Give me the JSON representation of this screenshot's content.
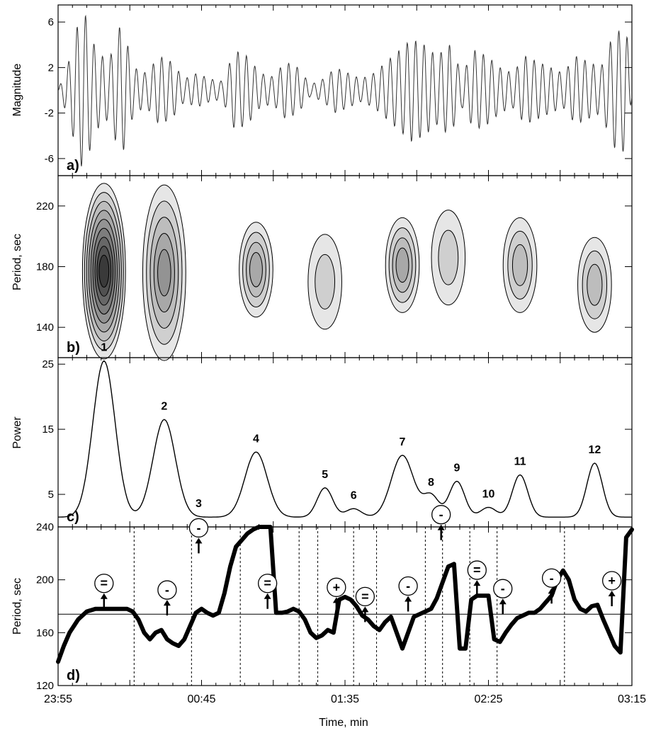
{
  "chart_data": [
    {
      "panel": "a",
      "panel_label": "a)",
      "type": "line",
      "ylabel": "Magnitude",
      "yticks": [
        "6",
        "2",
        "-2",
        "-6"
      ],
      "ylim": [
        -7.5,
        7.5
      ],
      "description_series": "oscillating signal with amplitude bursts",
      "series": [
        {
          "x": [
            0.0,
            4.4,
            5.9,
            8.8,
            13.2,
            17.6,
            22.0,
            26.4,
            30.8,
            35.2,
            39.6,
            44.0,
            48.4,
            52.8,
            57.2,
            61.6,
            66.0,
            70.4,
            74.8,
            79.2,
            83.6,
            88.0,
            92.4,
            96.8,
            101.2,
            105.6,
            110.0,
            114.4,
            118.8,
            123.2,
            127.6,
            132.0,
            136.4,
            140.8,
            145.2,
            149.6,
            154.0,
            158.4,
            162.8,
            167.2,
            171.6,
            176.0,
            180.4,
            184.8,
            189.2,
            193.6,
            198.0,
            200.0
          ],
          "y": [
            0.0,
            3.0,
            5.0,
            7.2,
            3.5,
            2.5,
            6.0,
            2.0,
            1.5,
            3.0,
            2.5,
            1.0,
            1.5,
            1.0,
            0.8,
            3.5,
            3.0,
            1.5,
            1.2,
            2.5,
            2.0,
            0.5,
            1.0,
            2.0,
            1.5,
            1.0,
            1.5,
            2.5,
            3.5,
            4.5,
            4.0,
            3.0,
            4.0,
            1.5,
            3.5,
            3.0,
            2.0,
            1.5,
            3.0,
            2.5,
            2.0,
            1.5,
            3.0,
            2.5,
            2.0,
            5.0,
            5.5,
            0.5
          ]
        }
      ]
    },
    {
      "panel": "b",
      "panel_label": "b)",
      "type": "heatmap",
      "ylabel": "Period, sec",
      "yticks": [
        220,
        180,
        140
      ],
      "ylim": [
        120,
        240
      ],
      "blobs": [
        {
          "t": 16.0,
          "p": 177,
          "levels": 9
        },
        {
          "t": 37.0,
          "p": 176,
          "levels": 5
        },
        {
          "t": 69.0,
          "p": 178,
          "levels": 4
        },
        {
          "t": 93.0,
          "p": 170,
          "levels": 2
        },
        {
          "t": 120.0,
          "p": 181,
          "levels": 4
        },
        {
          "t": 136.0,
          "p": 186,
          "levels": 2
        },
        {
          "t": 161.0,
          "p": 181,
          "levels": 3
        },
        {
          "t": 187.0,
          "p": 168,
          "levels": 3
        }
      ]
    },
    {
      "panel": "c",
      "panel_label": "c)",
      "type": "line",
      "ylabel": "Power",
      "yticks": [
        25,
        15,
        5
      ],
      "ylim": [
        0,
        26
      ],
      "peaks": [
        {
          "label": "1",
          "t": 16.0,
          "power": 25.5
        },
        {
          "label": "2",
          "t": 37.0,
          "power": 16.5
        },
        {
          "label": "3",
          "t": 49.0,
          "power": 1.5
        },
        {
          "label": "4",
          "t": 69.0,
          "power": 11.5
        },
        {
          "label": "5",
          "t": 93.0,
          "power": 6.0
        },
        {
          "label": "6",
          "t": 103.0,
          "power": 2.8
        },
        {
          "label": "7",
          "t": 120.0,
          "power": 11.0
        },
        {
          "label": "8",
          "t": 130.0,
          "power": 4.8
        },
        {
          "label": "9",
          "t": 139.0,
          "power": 7.0
        },
        {
          "label": "10",
          "t": 150.0,
          "power": 3.0
        },
        {
          "label": "11",
          "t": 161.0,
          "power": 8.0
        },
        {
          "label": "12",
          "t": 187.0,
          "power": 9.8
        }
      ],
      "baseline": 1.5
    },
    {
      "panel": "d",
      "panel_label": "d)",
      "type": "scatter",
      "ylabel": "Period, sec",
      "xlabel": "Time, min",
      "yticks": [
        240,
        200,
        160,
        120
      ],
      "ylim": [
        120,
        240
      ],
      "xticks": [
        "23:55",
        "00:45",
        "01:35",
        "02:25",
        "03:15"
      ],
      "xlim": [
        0,
        200
      ],
      "reference_period": 174,
      "series": [
        {
          "t": [
            0.0,
            2.0,
            4.0,
            7.0,
            10.0,
            13.0,
            16.0,
            19.0,
            22.0,
            24.0,
            26.0,
            28.0,
            30.0,
            32.0,
            34.0,
            36.0,
            38.0,
            40.0,
            42.0,
            44.0,
            46.0,
            48.0,
            50.0,
            52.0,
            54.0,
            56.0,
            58.0,
            60.0,
            62.0,
            64.0,
            66.0,
            68.0,
            70.0,
            72.0,
            74.0,
            76.0,
            78.0,
            80.0,
            82.0,
            84.0,
            86.0,
            88.0,
            90.0,
            92.0,
            94.0,
            96.0,
            98.0,
            100.0,
            102.0,
            104.0,
            106.0,
            108.0,
            110.0,
            112.0,
            114.0,
            116.0,
            118.0,
            120.0,
            122.0,
            124.0,
            126.0,
            128.0,
            130.0,
            132.0,
            134.0,
            136.0,
            138.0,
            140.0,
            142.0,
            144.0,
            146.0,
            148.0,
            150.0,
            152.0,
            154.0,
            156.0,
            158.0,
            160.0,
            162.0,
            164.0,
            166.0,
            168.0,
            170.0,
            172.0,
            174.0,
            176.0,
            178.0,
            180.0,
            182.0,
            184.0,
            186.0,
            188.0,
            190.0,
            192.0,
            194.0,
            196.0,
            198.0,
            200.0
          ],
          "period": [
            138,
            150,
            160,
            170,
            176,
            178,
            178,
            178,
            178,
            178,
            176,
            170,
            160,
            155,
            160,
            162,
            155,
            152,
            150,
            155,
            165,
            175,
            178,
            175,
            173,
            175,
            190,
            210,
            225,
            230,
            235,
            238,
            240,
            240,
            240,
            175,
            175,
            176,
            178,
            176,
            170,
            160,
            156,
            158,
            162,
            160,
            185,
            187,
            185,
            180,
            173,
            170,
            165,
            162,
            168,
            172,
            160,
            148,
            160,
            172,
            174,
            176,
            178,
            186,
            198,
            210,
            212,
            148,
            148,
            185,
            188,
            188,
            188,
            155,
            153,
            160,
            166,
            171,
            173,
            175,
            175,
            178,
            183,
            188,
            200,
            207,
            200,
            185,
            178,
            176,
            180,
            181,
            170,
            160,
            150,
            145,
            232,
            238
          ]
        }
      ],
      "annotations": [
        {
          "sign": "=",
          "t": 16.0,
          "period": 178
        },
        {
          "sign": "-",
          "t": 38.0,
          "period": 173
        },
        {
          "sign": "-",
          "t": 49.0,
          "period": 220
        },
        {
          "sign": "=",
          "t": 73.0,
          "period": 178
        },
        {
          "sign": "+",
          "t": 97.0,
          "period": 175
        },
        {
          "sign": "=",
          "t": 107.0,
          "period": 168
        },
        {
          "sign": "-",
          "t": 122.0,
          "period": 176
        },
        {
          "sign": "-",
          "t": 133.5,
          "period": 230
        },
        {
          "sign": "=",
          "t": 146.0,
          "period": 188
        },
        {
          "sign": "-",
          "t": 155.0,
          "period": 174
        },
        {
          "sign": "-",
          "t": 172.0,
          "period": 182
        },
        {
          "sign": "+",
          "t": 193.0,
          "period": 180
        }
      ],
      "dashed_lines_t": [
        26.5,
        46.5,
        63.5,
        84.0,
        90.5,
        103.0,
        111.0,
        128.0,
        134.0,
        143.5,
        153.0,
        176.5
      ]
    }
  ]
}
